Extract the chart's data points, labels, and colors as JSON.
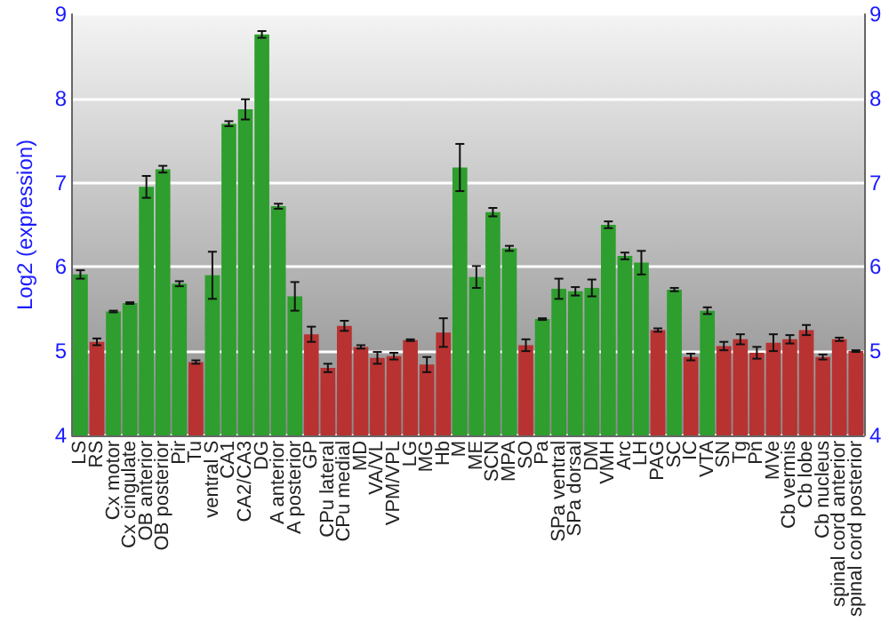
{
  "chart_data": {
    "type": "bar",
    "ylabel": "Log2 (expression)",
    "categories": [
      "LS",
      "RS",
      "Cx motor",
      "Cx cingulate",
      "OB anterior",
      "OB posterior",
      "Pir",
      "Tu",
      "ventral S",
      "CA1",
      "CA2/CA3",
      "DG",
      "A anterior",
      "A posterior",
      "GP",
      "CPu lateral",
      "CPu medial",
      "MD",
      "VA/VL",
      "VPM/VPL",
      "LG",
      "MG",
      "Hb",
      "M",
      "ME",
      "SCN",
      "MPA",
      "SO",
      "Pa",
      "SPa ventral",
      "SPa dorsal",
      "DM",
      "VMH",
      "Arc",
      "LH",
      "PAG",
      "SC",
      "IC",
      "VTA",
      "SN",
      "Tg",
      "Pn",
      "MVe",
      "Cb vermis",
      "Cb lobe",
      "Cb nucleus",
      "spinal cord anterior",
      "spinal cord posterior"
    ],
    "values": [
      5.91,
      5.11,
      5.47,
      5.57,
      6.95,
      7.16,
      5.8,
      4.87,
      5.9,
      7.7,
      7.87,
      8.76,
      6.72,
      5.65,
      5.2,
      4.8,
      5.3,
      5.05,
      4.92,
      4.94,
      5.13,
      4.84,
      5.22,
      7.18,
      5.88,
      6.65,
      6.22,
      5.07,
      5.38,
      5.74,
      5.71,
      5.75,
      6.5,
      6.13,
      6.05,
      5.25,
      5.73,
      4.93,
      5.48,
      5.06,
      5.14,
      4.98,
      5.1,
      5.14,
      5.25,
      4.93,
      5.14,
      5.0
    ],
    "errors": [
      0.05,
      0.04,
      0.01,
      0.01,
      0.13,
      0.04,
      0.03,
      0.02,
      0.28,
      0.03,
      0.12,
      0.04,
      0.03,
      0.17,
      0.09,
      0.05,
      0.06,
      0.02,
      0.07,
      0.04,
      0.01,
      0.09,
      0.17,
      0.28,
      0.13,
      0.05,
      0.03,
      0.07,
      0.01,
      0.12,
      0.05,
      0.1,
      0.04,
      0.04,
      0.14,
      0.02,
      0.02,
      0.04,
      0.04,
      0.05,
      0.06,
      0.07,
      0.1,
      0.05,
      0.06,
      0.03,
      0.02,
      0.01
    ],
    "colors": [
      "#2e9e2e",
      "#b83232",
      "#2e9e2e",
      "#2e9e2e",
      "#2e9e2e",
      "#2e9e2e",
      "#2e9e2e",
      "#b83232",
      "#2e9e2e",
      "#2e9e2e",
      "#2e9e2e",
      "#2e9e2e",
      "#2e9e2e",
      "#2e9e2e",
      "#b83232",
      "#b83232",
      "#b83232",
      "#b83232",
      "#b83232",
      "#b83232",
      "#b83232",
      "#b83232",
      "#b83232",
      "#2e9e2e",
      "#2e9e2e",
      "#2e9e2e",
      "#2e9e2e",
      "#b83232",
      "#2e9e2e",
      "#2e9e2e",
      "#2e9e2e",
      "#2e9e2e",
      "#2e9e2e",
      "#2e9e2e",
      "#2e9e2e",
      "#b83232",
      "#2e9e2e",
      "#b83232",
      "#2e9e2e",
      "#b83232",
      "#b83232",
      "#b83232",
      "#b83232",
      "#b83232",
      "#b83232",
      "#b83232",
      "#b83232",
      "#b83232"
    ],
    "ylim": [
      4,
      9
    ],
    "yticks": [
      4,
      5,
      6,
      7,
      8,
      9
    ],
    "y2lim": [
      4,
      9
    ],
    "y2ticks": [
      4,
      5,
      6,
      7,
      8,
      9
    ],
    "grid": "y"
  }
}
